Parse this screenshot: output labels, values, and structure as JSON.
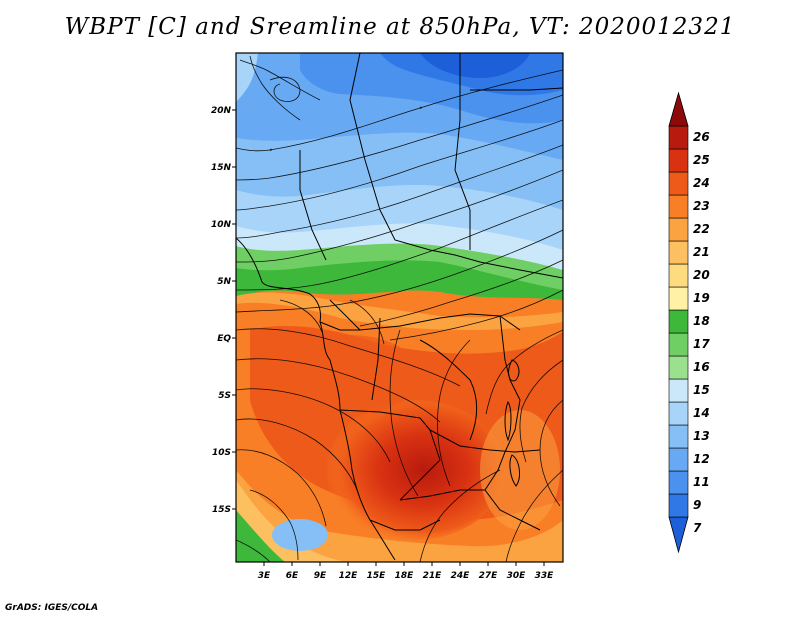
{
  "title": "WBPT [C] and Sreamline at 850hPa, VT: 2020012321",
  "credit": "GrADS: IGES/COLA",
  "map": {
    "lon_labels": [
      "3E",
      "6E",
      "9E",
      "12E",
      "15E",
      "18E",
      "21E",
      "24E",
      "27E",
      "30E",
      "33E"
    ],
    "lat_labels": [
      "20N",
      "15N",
      "10N",
      "5N",
      "EQ",
      "5S",
      "10S",
      "15S"
    ]
  },
  "colorbar": {
    "labels": [
      "7",
      "9",
      "11",
      "12",
      "13",
      "14",
      "15",
      "16",
      "17",
      "18",
      "19",
      "20",
      "21",
      "22",
      "23",
      "24",
      "25",
      "26"
    ],
    "colors": [
      "#1c5fd8",
      "#2f78e6",
      "#4a92ee",
      "#67a9f2",
      "#86bff5",
      "#a7d4f8",
      "#cbe8fa",
      "#9be08f",
      "#6fcf64",
      "#3db83a",
      "#fff2a6",
      "#fedb7e",
      "#fdc060",
      "#fca341",
      "#f97f26",
      "#ee5a19",
      "#d93212",
      "#b81a0d",
      "#8e0909"
    ]
  }
}
